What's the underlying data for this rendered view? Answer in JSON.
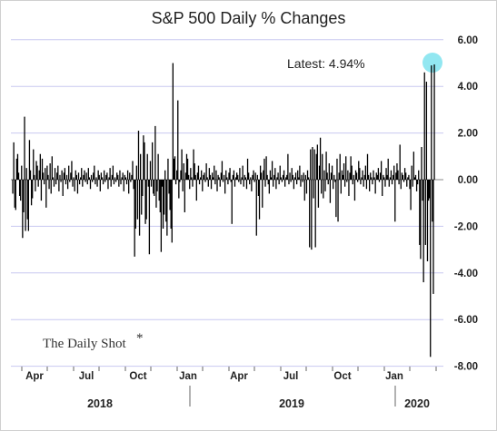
{
  "chart_data": {
    "type": "bar",
    "title": "S&P 500 Daily % Changes",
    "ylim": [
      -8,
      6
    ],
    "yticks": [
      6,
      4,
      2,
      0,
      -2,
      -4,
      -6,
      -8
    ],
    "ytick_labels": [
      "6.00",
      "4.00",
      "2.00",
      "0.00",
      "-2.00",
      "-4.00",
      "-6.00",
      "-8.00"
    ],
    "y_axis_side": "right",
    "grid": "horizontal",
    "x_month_labels": [
      "Apr",
      "Jul",
      "Oct",
      "Jan",
      "Apr",
      "Jul",
      "Oct",
      "Jan"
    ],
    "x_year_labels": [
      "2018",
      "2019",
      "2020"
    ],
    "bar_color": "#000000",
    "gridline_color": "#c8c8f0",
    "highlight_color": "#7fe3ee",
    "annotation": "Latest:  4.94%",
    "latest_value": 4.94,
    "values": [
      -0.6,
      1.6,
      -1.2,
      -1.3,
      0.9,
      1.1,
      0.3,
      -0.7,
      -0.9,
      0.6,
      -2.5,
      -1.4,
      2.7,
      -2.2,
      0.5,
      -1.7,
      -2.2,
      1.7,
      0.4,
      -1.1,
      -0.8,
      1.3,
      0.2,
      -0.5,
      0.8,
      0.6,
      -0.3,
      0.4,
      1.1,
      -0.9,
      0.9,
      0.3,
      -0.2,
      0.5,
      -1.2,
      0.6,
      0.2,
      -0.4,
      0.7,
      -0.6,
      1.0,
      0.1,
      -0.3,
      0.5,
      -0.2,
      0.3,
      0.6,
      -0.5,
      0.2,
      -0.1,
      0.4,
      -0.7,
      0.3,
      0.5,
      -0.2,
      0.2,
      -0.4,
      0.6,
      -0.1,
      0.3,
      0.8,
      -0.3,
      0.1,
      -0.5,
      0.4,
      0.2,
      -0.6,
      0.3,
      -0.2,
      0.1,
      0.5,
      -0.3,
      0.2,
      0.4,
      -0.1,
      0.3,
      -0.2,
      0.5,
      0.1,
      -0.4,
      0.2,
      -0.1,
      0.3,
      0.6,
      -0.2,
      0.1,
      -0.3,
      0.4,
      0.2,
      -0.5,
      0.3,
      0.1,
      -0.2,
      0.4,
      -0.1,
      0.2,
      0.3,
      -0.4,
      0.1,
      0.5,
      -0.3,
      0.2,
      0.6,
      -0.2,
      0.1,
      -0.1,
      0.3,
      0.2,
      -0.3,
      0.4,
      -0.2,
      0.1,
      0.3,
      -0.5,
      0.2,
      0.1,
      -0.2,
      0.4,
      -0.6,
      0.3,
      -0.1,
      0.2,
      0.8,
      -0.4,
      -3.3,
      -2.1,
      0.6,
      -1.7,
      2.1,
      -2.4,
      1.1,
      -1.5,
      -0.7,
      1.9,
      1.6,
      -1.9,
      -1.7,
      1.1,
      -0.3,
      -3.2,
      0.8,
      -0.3,
      1.6,
      -0.6,
      -0.7,
      2.3,
      -1.2,
      -0.5,
      1.1,
      -0.9,
      -1.4,
      -3.1,
      -0.3,
      -2.1,
      -1.5,
      0.4,
      -1.8,
      -2.4,
      0.9,
      -0.6,
      -1.3,
      -2.1,
      -2.7,
      5.0,
      0.9,
      1.0,
      -0.2,
      0.4,
      3.4,
      -0.8,
      -0.1,
      0.4,
      1.3,
      -0.5,
      0.7,
      -1.4,
      0.3,
      1.1,
      0.9,
      0.2,
      -0.4,
      0.5,
      0.1,
      -0.3,
      1.3,
      0.7,
      0.2,
      -0.9,
      0.3,
      0.6,
      -0.2,
      0.1,
      0.4,
      -0.5,
      0.2,
      0.3,
      -0.1,
      0.7,
      0.1,
      -0.3,
      0.5,
      0.2,
      -0.4,
      0.3,
      0.1,
      0.6,
      -0.2,
      0.4,
      -0.5,
      0.2,
      0.1,
      -0.3,
      0.3,
      0.8,
      -0.1,
      0.2,
      -0.6,
      0.4,
      0.1,
      -0.2,
      0.3,
      0.5,
      -0.1,
      -1.9,
      0.2,
      0.4,
      -0.3,
      0.1,
      0.3,
      0.2,
      -0.1,
      0.5,
      -0.2,
      0.1,
      0.6,
      -0.3,
      0.2,
      0.1,
      -0.4,
      0.9,
      0.3,
      -0.2,
      0.1,
      -0.5,
      0.2,
      0.4,
      -0.1,
      0.3,
      -2.4,
      0.2,
      -0.7,
      -1.7,
      0.6,
      0.3,
      -1.2,
      0.4,
      0.9,
      -0.3,
      1.0,
      0.2,
      -0.2,
      -0.6,
      0.4,
      0.1,
      0.8,
      -0.3,
      0.2,
      0.5,
      -0.4,
      0.1,
      0.3,
      -0.2,
      0.6,
      0.1,
      -0.1,
      0.2,
      0.4,
      -0.3,
      0.1,
      0.2,
      1.1,
      -0.2,
      0.3,
      -0.1,
      0.5,
      0.2,
      -0.4,
      0.1,
      0.3,
      -0.2,
      0.4,
      0.1,
      0.6,
      -0.3,
      0.2,
      -0.1,
      0.3,
      -0.9,
      0.2,
      -0.6,
      0.4,
      0.1,
      -2.9,
      1.3,
      -3.0,
      1.4,
      -0.8,
      1.3,
      -2.9,
      1.1,
      1.5,
      -1.2,
      0.6,
      1.8,
      -0.6,
      1.1,
      -0.8,
      0.4,
      -0.5,
      1.2,
      0.3,
      -0.2,
      0.7,
      -1.0,
      0.3,
      0.6,
      -0.4,
      0.2,
      -0.1,
      -1.6,
      0.9,
      -1.8,
      0.3,
      1.1,
      -0.6,
      0.4,
      0.2,
      0.7,
      -0.3,
      1.0,
      -0.1,
      0.4,
      -0.7,
      0.3,
      1.0,
      0.6,
      -0.2,
      0.2,
      -0.9,
      0.4,
      0.3,
      -0.1,
      0.8,
      0.5,
      -0.2,
      0.1,
      0.4,
      -0.3,
      0.2,
      0.6,
      -0.4,
      1.1,
      0.2,
      -0.5,
      0.3,
      0.1,
      -0.2,
      0.4,
      0.1,
      -0.6,
      0.3,
      0.2,
      0.5,
      -0.1,
      0.3,
      0.8,
      -0.7,
      0.2,
      0.1,
      -0.3,
      0.5,
      0.2,
      0.9,
      -0.3,
      0.1,
      0.4,
      -0.2,
      0.2,
      0.6,
      -1.8,
      0.3,
      0.7,
      0.4,
      -0.2,
      1.5,
      -0.4,
      0.3,
      0.2,
      -0.1,
      0.5,
      0.3,
      -0.3,
      0.1,
      0.2,
      -0.4,
      -1.3,
      0.6,
      -0.3,
      1.2,
      0.1,
      0.2,
      -0.5,
      -0.2,
      0.4,
      -2.8,
      -3.4,
      1.4,
      -0.9,
      -4.4,
      4.6,
      -2.8,
      4.2,
      -3.5,
      -0.9,
      -0.8,
      -7.6,
      4.9,
      -1.8,
      -4.9,
      4.94
    ]
  },
  "branding": "The Daily Shot"
}
